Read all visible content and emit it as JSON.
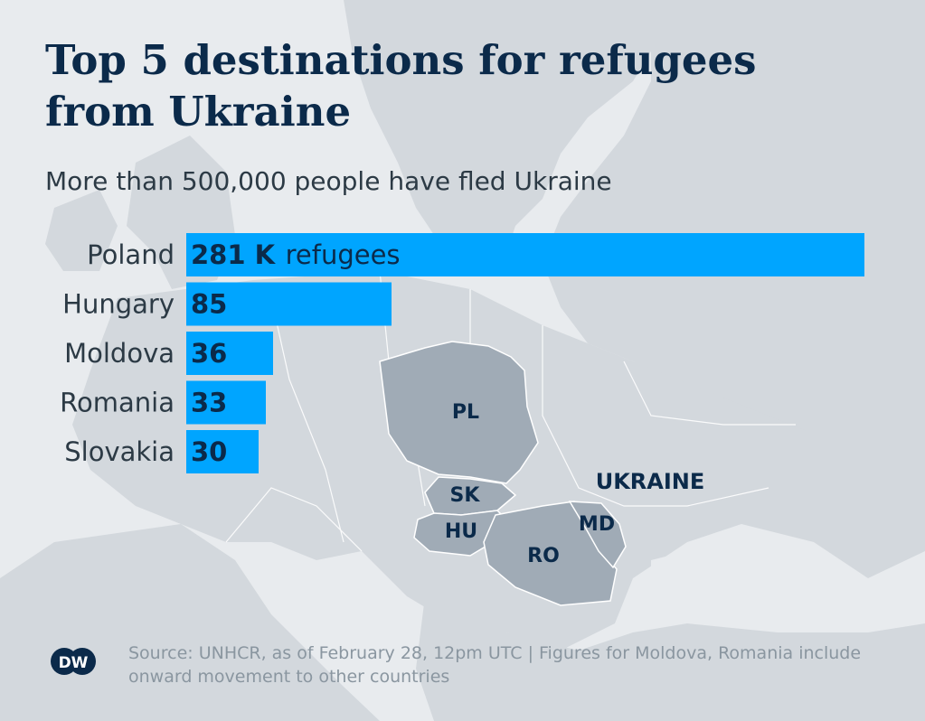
{
  "title": "Top 5 destinations for refugees from Ukraine",
  "subtitle": "More than 500,000 people have fled Ukraine",
  "source": "Source: UNHCR, as of February 28, 12pm UTC | Figures for Moldova, Romania include onward movement to other countries",
  "logo_text": "DW",
  "colors": {
    "background": "#e8ebee",
    "land": "#d3d8dd",
    "highlight_country": "#a0abb6",
    "bar": "#00a5ff",
    "text_dark": "#0b2a4a",
    "text_mid": "#2c3a45",
    "text_light": "#8a96a0"
  },
  "map_labels": {
    "PL": "PL",
    "SK": "SK",
    "HU": "HU",
    "RO": "RO",
    "MD": "MD",
    "UKRAINE": "UKRAINE"
  },
  "chart_data": {
    "type": "bar",
    "orientation": "horizontal",
    "categories": [
      "Poland",
      "Hungary",
      "Moldova",
      "Romania",
      "Slovakia"
    ],
    "values": [
      281,
      85,
      36,
      33,
      30
    ],
    "value_labels": [
      "281 K",
      "85",
      "36",
      "33",
      "30"
    ],
    "first_label_suffix": "refugees",
    "title": "Top 5 destinations for refugees from Ukraine",
    "subtitle": "More than 500,000 people have fled Ukraine",
    "xlabel": "",
    "ylabel": "",
    "xlim": [
      0,
      281
    ],
    "grid": false,
    "legend": "none"
  }
}
